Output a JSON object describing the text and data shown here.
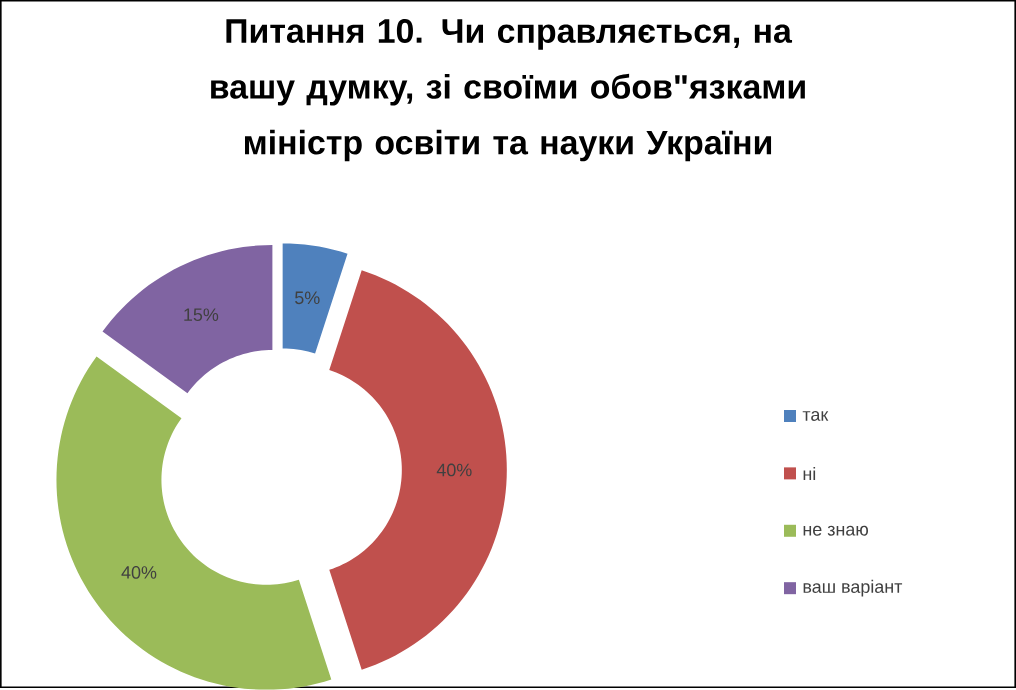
{
  "chart_data": {
    "type": "donut",
    "title": "Питання 10. Чи справляється, на вашу думку, зі своїми обов\"язками міністр освіти та науки України",
    "categories": [
      "так",
      "ні",
      "не знаю",
      "ваш варіант"
    ],
    "values": [
      5,
      40,
      40,
      15
    ],
    "colors": [
      "#4f81bd",
      "#c0504d",
      "#9bbb59",
      "#8064a2"
    ],
    "value_labels": [
      "5%",
      "40%",
      "40%",
      "15%"
    ],
    "legend": "right"
  }
}
